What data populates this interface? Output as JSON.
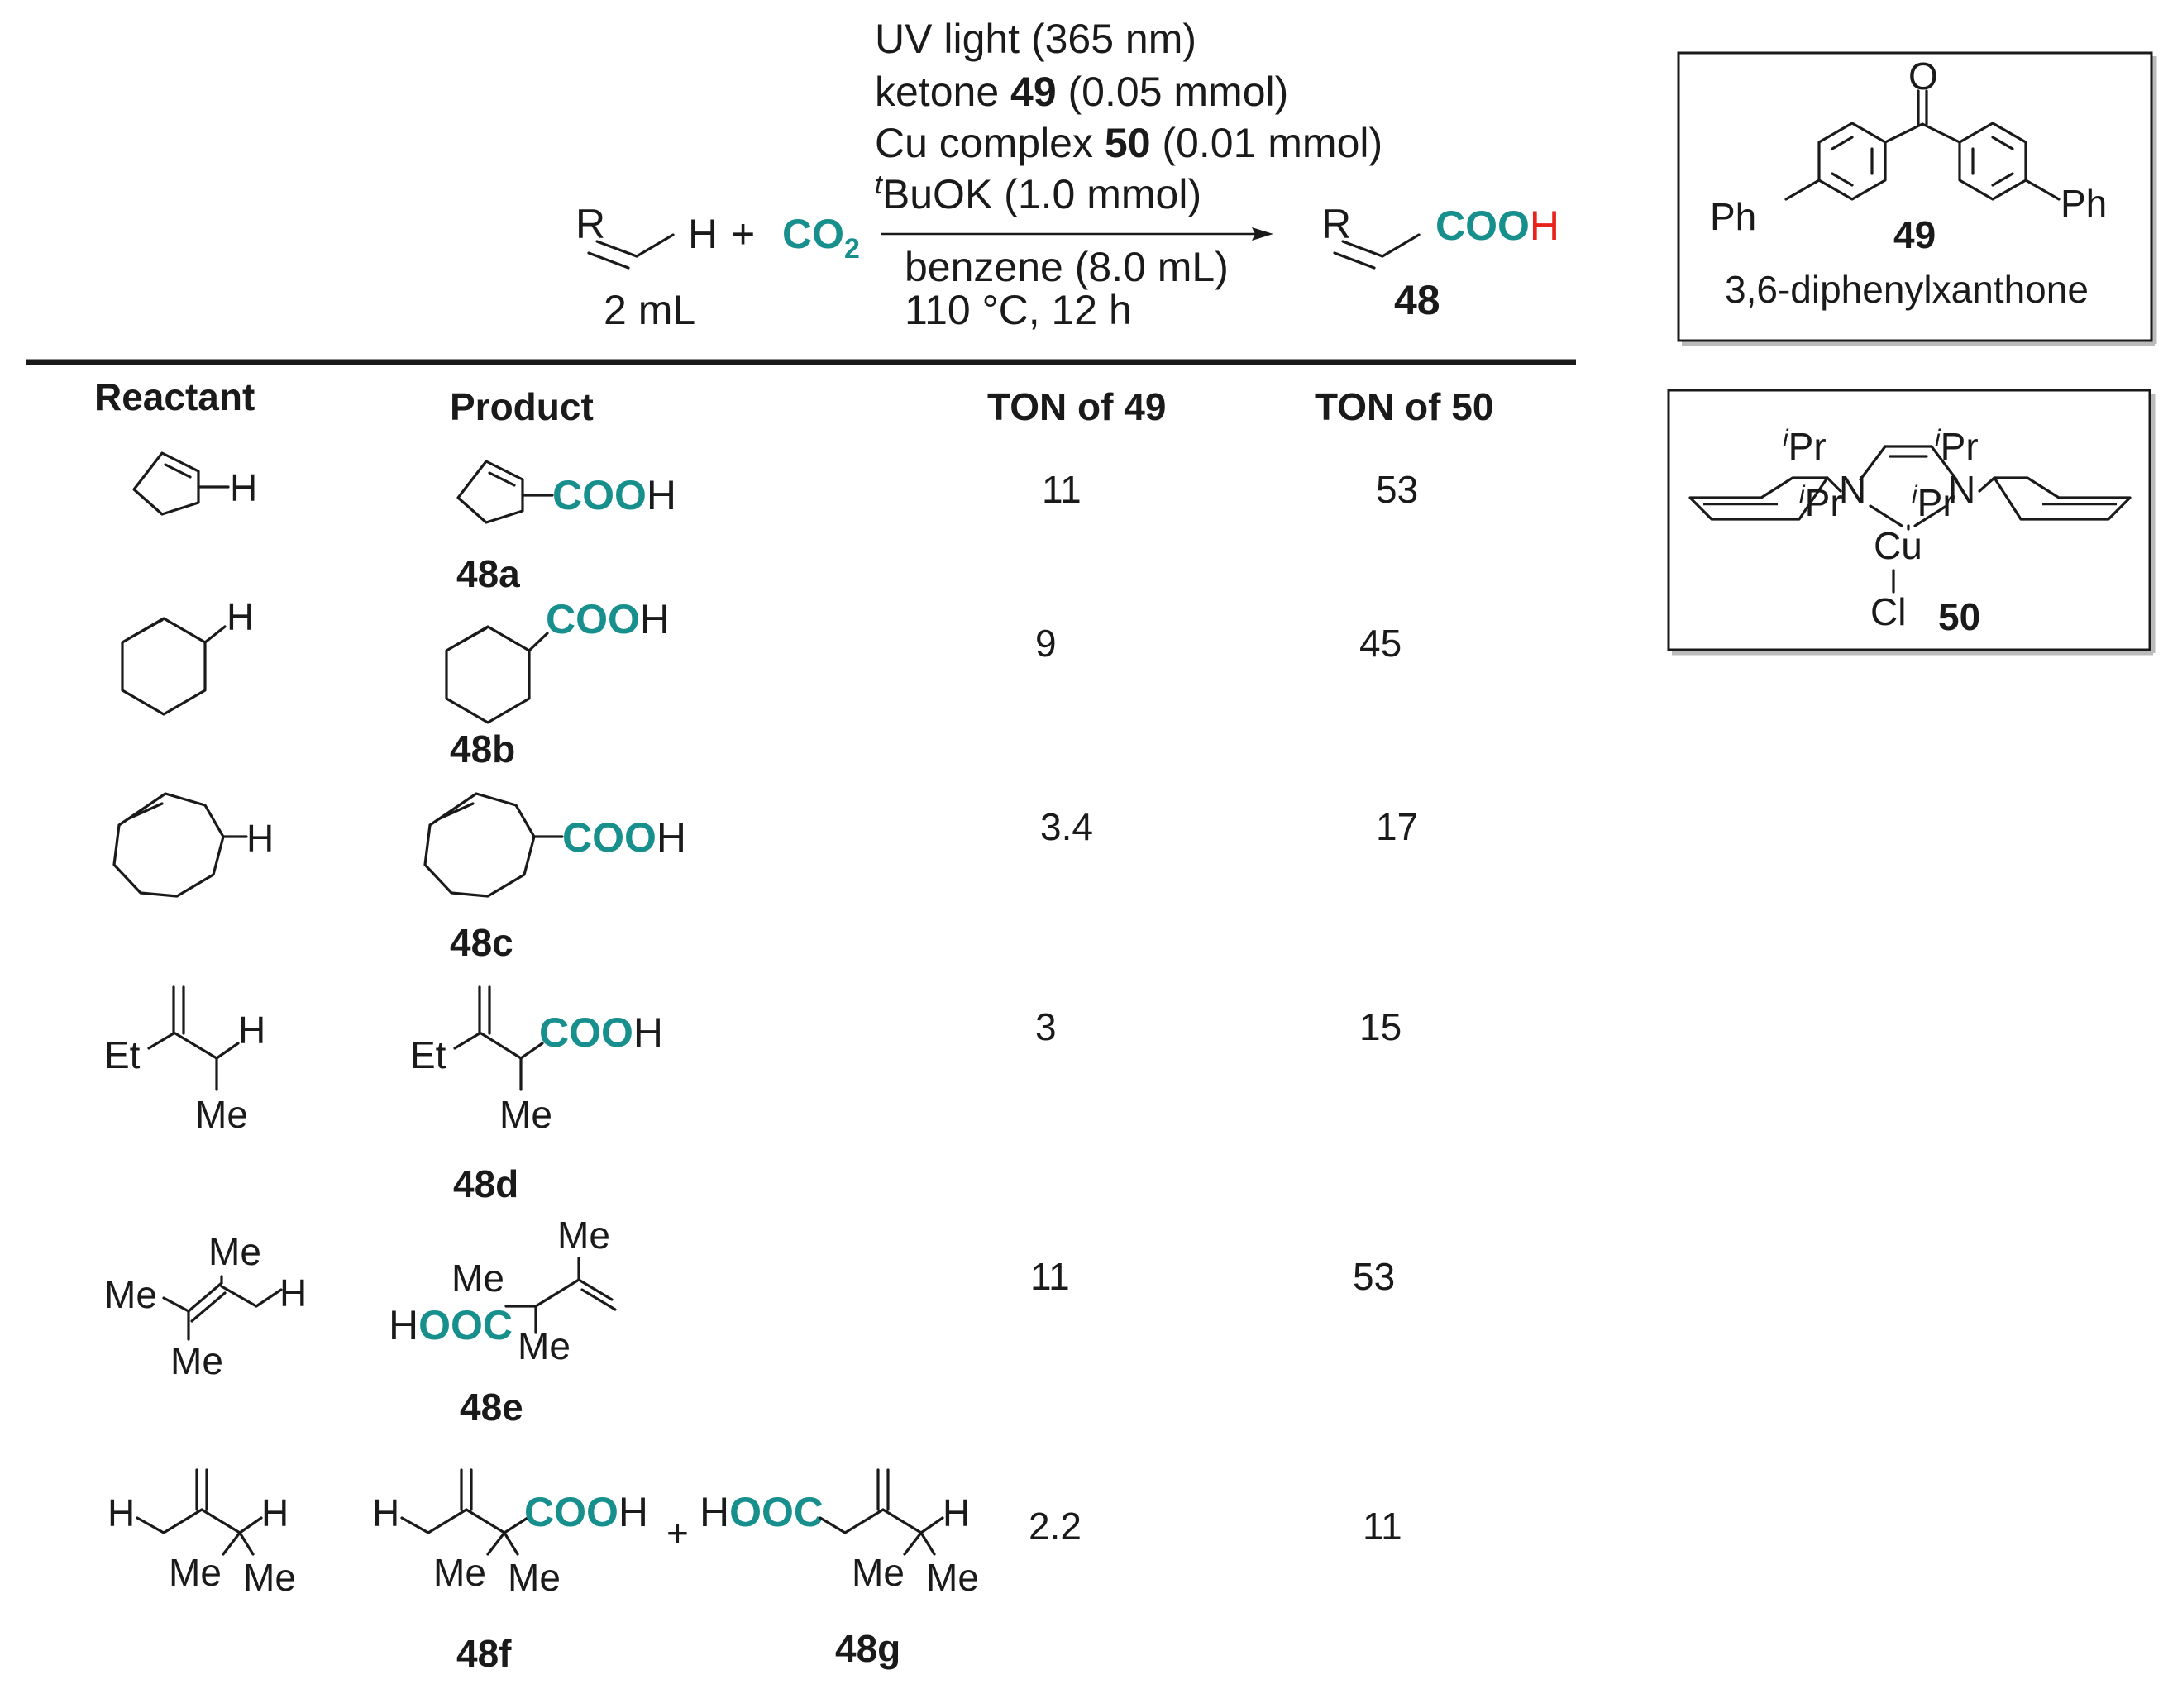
{
  "conditions": {
    "light": "UV light (365 nm)",
    "ketone_prefix": "ketone ",
    "ketone_id": "49",
    "ketone_amount": " (0.05 mmol)",
    "cu_prefix": "Cu complex ",
    "cu_id": "50",
    "cu_amount": " (0.01 mmol)",
    "base_sup": "t",
    "base": "BuOK (1.0 mmol)",
    "solvent": "benzene (8.0 mL)",
    "temp_time": "110 °C, 12 h"
  },
  "scheme": {
    "R": "R",
    "H": "H",
    "plus": "+",
    "co2_main": "CO",
    "co2_sub": "2",
    "volume": "2 mL",
    "product_cooh": "COO",
    "product_h": "H",
    "product_id": "48"
  },
  "catalyst_49": {
    "o": "O",
    "ph_left": "Ph",
    "ph_right": "Ph",
    "id": "49",
    "name": "3,6-diphenylxanthone"
  },
  "catalyst_50": {
    "ipr_sup": "i",
    "pr": "Pr",
    "n": "N",
    "cu": "Cu",
    "cl": "Cl",
    "id": "50"
  },
  "table": {
    "headers": {
      "reactant": "Reactant",
      "product": "Product",
      "ton49": "TON of 49",
      "ton50": "TON of 50"
    },
    "rows": [
      {
        "id": "48a",
        "ton49": "11",
        "ton50": "53"
      },
      {
        "id": "48b",
        "ton49": "9",
        "ton50": "45"
      },
      {
        "id": "48c",
        "ton49": "3.4",
        "ton50": "17"
      },
      {
        "id": "48d",
        "ton49": "3",
        "ton50": "15"
      },
      {
        "id": "48e",
        "ton49": "11",
        "ton50": "53"
      },
      {
        "id": "48f",
        "id2": "48g",
        "ton49": "2.2",
        "ton50": "11"
      }
    ]
  },
  "labels": {
    "H": "H",
    "COO": "COO",
    "HOOC_H": "H",
    "OOC": "OOC",
    "Et": "Et",
    "Me": "Me",
    "plus": "+"
  },
  "colors": {
    "accent": "#178f8c",
    "red": "#e8231c"
  }
}
